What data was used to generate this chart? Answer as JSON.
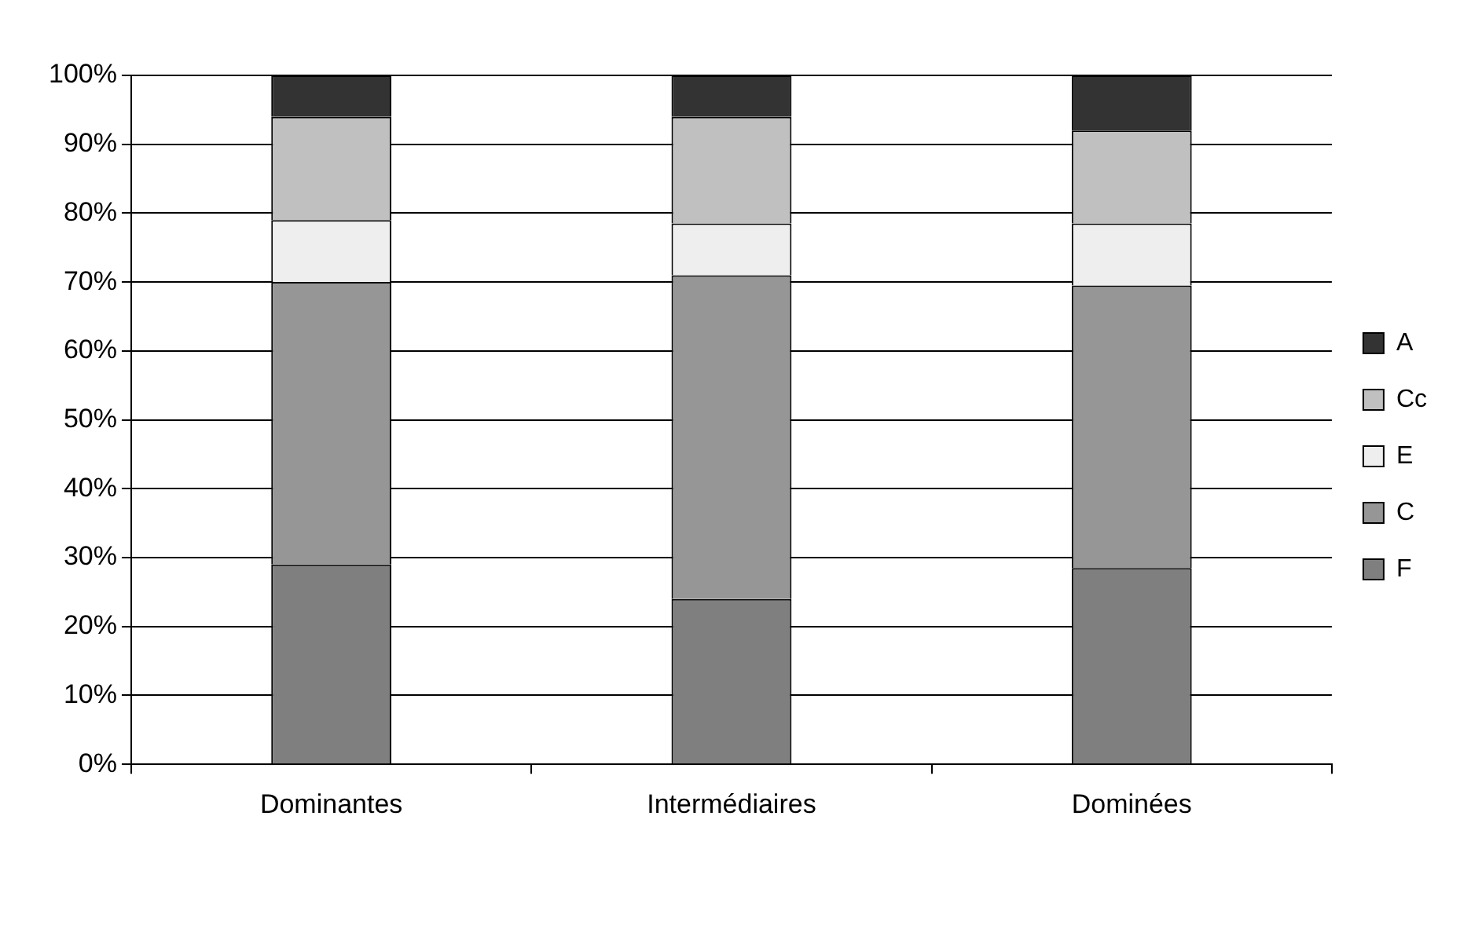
{
  "chart_data": {
    "type": "bar",
    "stacked": true,
    "categories": [
      "Dominantes",
      "Intermédiaires",
      "Dominées"
    ],
    "series": [
      {
        "name": "F",
        "color": "#7f7f7f",
        "values": [
          29,
          24,
          28.5
        ]
      },
      {
        "name": "C",
        "color": "#969696",
        "values": [
          41,
          47,
          41
        ]
      },
      {
        "name": "E",
        "color": "#eeeeee",
        "values": [
          9,
          7.5,
          9
        ]
      },
      {
        "name": "Cc",
        "color": "#c0c0c0",
        "values": [
          15,
          15.5,
          13.5
        ]
      },
      {
        "name": "A",
        "color": "#333333",
        "values": [
          6,
          6,
          8
        ]
      }
    ],
    "ylim": [
      0,
      100
    ],
    "yticks": [
      {
        "value": 0,
        "label": "0%"
      },
      {
        "value": 10,
        "label": "10%"
      },
      {
        "value": 20,
        "label": "20%"
      },
      {
        "value": 30,
        "label": "30%"
      },
      {
        "value": 40,
        "label": "40%"
      },
      {
        "value": 50,
        "label": "50%"
      },
      {
        "value": 60,
        "label": "60%"
      },
      {
        "value": 70,
        "label": "70%"
      },
      {
        "value": 80,
        "label": "80%"
      },
      {
        "value": 90,
        "label": "90%"
      },
      {
        "value": 100,
        "label": "100%"
      }
    ],
    "grid": "y",
    "legend": "right"
  }
}
